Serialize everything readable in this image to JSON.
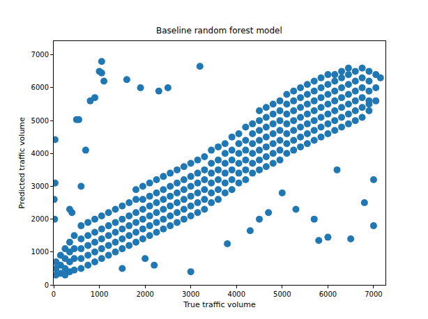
{
  "chart_data": {
    "type": "scatter",
    "title": "Baseline random forest model",
    "x_label": "True traffic volume",
    "y_label": "Predicted traffic volume",
    "color": "#1f77b4",
    "marker": "circle",
    "grid": false,
    "xlim": [
      0,
      7260
    ],
    "ylim": [
      0,
      7420
    ],
    "xticks": [
      0,
      1000,
      2000,
      3000,
      4000,
      5000,
      6000,
      7000
    ],
    "yticks": [
      0,
      1000,
      2000,
      3000,
      4000,
      5000,
      6000,
      7000
    ],
    "x": [
      50,
      50,
      50,
      150,
      150,
      150,
      250,
      250,
      250,
      250,
      350,
      350,
      350,
      350,
      450,
      450,
      450,
      450,
      600,
      600,
      600,
      600,
      600,
      750,
      750,
      750,
      750,
      750,
      900,
      900,
      900,
      900,
      900,
      1050,
      1050,
      1050,
      1050,
      1050,
      1200,
      1200,
      1200,
      1200,
      1200,
      1350,
      1350,
      1350,
      1350,
      1350,
      1500,
      1500,
      1500,
      1500,
      1500,
      1650,
      1650,
      1650,
      1650,
      1650,
      1800,
      1800,
      1800,
      1800,
      1800,
      1800,
      1950,
      1950,
      1950,
      1950,
      1950,
      1950,
      2100,
      2100,
      2100,
      2100,
      2100,
      2100,
      2250,
      2250,
      2250,
      2250,
      2250,
      2250,
      2400,
      2400,
      2400,
      2400,
      2400,
      2400,
      2550,
      2550,
      2550,
      2550,
      2550,
      2550,
      2700,
      2700,
      2700,
      2700,
      2700,
      2700,
      2850,
      2850,
      2850,
      2850,
      2850,
      2850,
      3000,
      3000,
      3000,
      3000,
      3000,
      3000,
      3150,
      3150,
      3150,
      3150,
      3150,
      3150,
      3300,
      3300,
      3300,
      3300,
      3300,
      3300,
      3450,
      3450,
      3450,
      3450,
      3450,
      3450,
      3600,
      3600,
      3600,
      3600,
      3600,
      3600,
      3750,
      3750,
      3750,
      3750,
      3750,
      3750,
      3900,
      3900,
      3900,
      3900,
      3900,
      3900,
      4050,
      4050,
      4050,
      4050,
      4050,
      4050,
      4200,
      4200,
      4200,
      4200,
      4200,
      4200,
      4350,
      4350,
      4350,
      4350,
      4350,
      4350,
      4500,
      4500,
      4500,
      4500,
      4500,
      4500,
      4500,
      4650,
      4650,
      4650,
      4650,
      4650,
      4650,
      4650,
      4800,
      4800,
      4800,
      4800,
      4800,
      4800,
      4800,
      4950,
      4950,
      4950,
      4950,
      4950,
      4950,
      4950,
      5100,
      5100,
      5100,
      5100,
      5100,
      5100,
      5100,
      5250,
      5250,
      5250,
      5250,
      5250,
      5250,
      5250,
      5400,
      5400,
      5400,
      5400,
      5400,
      5400,
      5400,
      5550,
      5550,
      5550,
      5550,
      5550,
      5550,
      5550,
      5700,
      5700,
      5700,
      5700,
      5700,
      5700,
      5700,
      5850,
      5850,
      5850,
      5850,
      5850,
      5850,
      5850,
      6000,
      6000,
      6000,
      6000,
      6000,
      6000,
      6000,
      6150,
      6150,
      6150,
      6150,
      6150,
      6150,
      6150,
      6300,
      6300,
      6300,
      6300,
      6300,
      6300,
      6300,
      6450,
      6450,
      6450,
      6450,
      6450,
      6450,
      6450,
      6600,
      6600,
      6600,
      6600,
      6600,
      6600,
      6750,
      6750,
      6750,
      6750,
      6750,
      6750,
      6900,
      6900,
      6900,
      6900,
      6900,
      7050,
      7050,
      7050,
      1050,
      1000,
      1050,
      3200,
      30,
      500,
      550,
      1100,
      1600,
      800,
      900,
      700,
      1900,
      2300,
      2500,
      3800,
      4300,
      4500,
      5800,
      6000,
      6500,
      7000,
      6800,
      5700,
      5300,
      4700,
      5000,
      3000,
      2200,
      2000,
      1500,
      20,
      10,
      30,
      400,
      600,
      350,
      7000,
      7150,
      6900,
      6200
    ],
    "values": [
      300,
      500,
      700,
      350,
      600,
      900,
      300,
      500,
      800,
      1100,
      400,
      700,
      1000,
      1300,
      450,
      800,
      1100,
      1500,
      500,
      800,
      1100,
      1400,
      1800,
      600,
      900,
      1200,
      1500,
      1900,
      700,
      1000,
      1300,
      1600,
      2000,
      800,
      1100,
      1400,
      1700,
      2100,
      900,
      1200,
      1500,
      1800,
      2200,
      1000,
      1300,
      1600,
      1900,
      2300,
      1100,
      1400,
      1700,
      2000,
      2400,
      1200,
      1500,
      1800,
      2100,
      2500,
      1300,
      1600,
      1900,
      2200,
      2600,
      2900,
      1400,
      1700,
      2000,
      2300,
      2600,
      3000,
      1500,
      1800,
      2100,
      2400,
      2700,
      3100,
      1600,
      1900,
      2200,
      2500,
      2800,
      3200,
      1700,
      2000,
      2300,
      2600,
      2900,
      3300,
      1800,
      2100,
      2400,
      2700,
      3000,
      3400,
      1900,
      2200,
      2500,
      2800,
      3100,
      3500,
      2000,
      2300,
      2600,
      2900,
      3200,
      3600,
      2100,
      2400,
      2700,
      3000,
      3300,
      3700,
      2200,
      2500,
      2800,
      3100,
      3400,
      3800,
      2300,
      2600,
      2900,
      3200,
      3500,
      3900,
      2500,
      2800,
      3100,
      3400,
      3700,
      4100,
      2600,
      2900,
      3200,
      3500,
      3800,
      4200,
      2800,
      3100,
      3400,
      3700,
      4000,
      4300,
      2900,
      3200,
      3500,
      3800,
      4100,
      4500,
      3100,
      3400,
      3700,
      4000,
      4300,
      4600,
      3200,
      3500,
      3800,
      4100,
      4400,
      4800,
      3400,
      3700,
      4000,
      4300,
      4600,
      4900,
      3500,
      3800,
      4100,
      4400,
      4700,
      5000,
      5300,
      3600,
      3900,
      4200,
      4500,
      4800,
      5100,
      5400,
      3700,
      4000,
      4300,
      4600,
      4900,
      5200,
      5500,
      3800,
      4100,
      4400,
      4700,
      5000,
      5300,
      5600,
      4000,
      4300,
      4600,
      4900,
      5200,
      5500,
      5800,
      4100,
      4400,
      4700,
      5000,
      5300,
      5600,
      5900,
      4200,
      4500,
      4800,
      5100,
      5400,
      5700,
      6000,
      4300,
      4600,
      4900,
      5200,
      5500,
      5800,
      6100,
      4400,
      4700,
      5000,
      5300,
      5600,
      5900,
      6200,
      4500,
      4800,
      5100,
      5400,
      5700,
      6000,
      6300,
      4600,
      4900,
      5200,
      5500,
      5800,
      6100,
      6400,
      4700,
      5000,
      5300,
      5600,
      5900,
      6200,
      6400,
      4800,
      5100,
      5400,
      5700,
      6000,
      6300,
      6500,
      4900,
      5200,
      5500,
      5800,
      6100,
      6400,
      6600,
      5000,
      5300,
      5600,
      5900,
      6200,
      6500,
      5100,
      5400,
      5700,
      6000,
      6300,
      6600,
      5300,
      5600,
      5900,
      6200,
      6500,
      5600,
      6000,
      6400,
      6800,
      6500,
      6450,
      6650,
      4420,
      5030,
      5030,
      6200,
      6250,
      5600,
      5700,
      4100,
      6000,
      5900,
      6000,
      1250,
      1650,
      2000,
      1350,
      1450,
      1400,
      1800,
      2500,
      2000,
      2300,
      2200,
      2800,
      400,
      600,
      800,
      500,
      2000,
      2600,
      3100,
      2200,
      3000,
      2300,
      3200,
      6300,
      5500,
      3500
    ]
  }
}
